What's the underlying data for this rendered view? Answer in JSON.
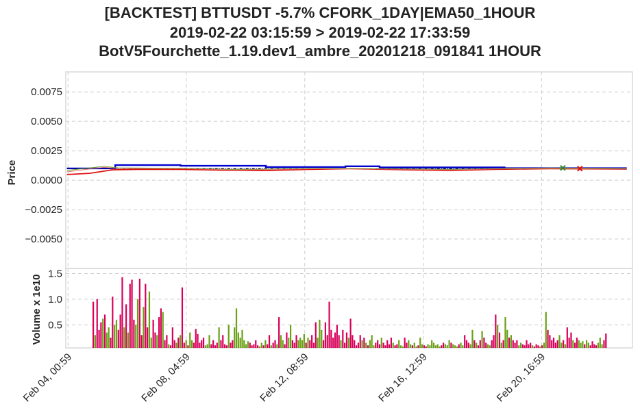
{
  "title": {
    "line1": "[BACKTEST] BTTUSDT -5.7% CFORK_1DAY|EMA50_1HOUR",
    "line2": "2019-02-22 03:15:59 > 2019-02-22 17:33:59",
    "line3": "BotV5Fourchette_1.19.dev1_ambre_20201218_091841 1HOUR"
  },
  "chart_data": [
    {
      "type": "line",
      "panel": "price",
      "ylabel": "Price",
      "ylim": [
        -0.0075,
        0.0092
      ],
      "yticks": [
        0.0075,
        0.005,
        0.0025,
        0.0,
        -0.0025,
        -0.005
      ],
      "ytick_labels": [
        "0.0075",
        "0.0050",
        "0.0025",
        "0.0000",
        "−0.0025",
        "−0.0050"
      ],
      "x_day_range": [
        3.96,
        23.9
      ],
      "xticks": [
        4.04,
        8.2,
        12.37,
        16.54,
        20.7
      ],
      "xtick_labels": [
        "Feb 04, 00:59",
        "Feb 08, 04:59",
        "Feb 12, 08:59",
        "Feb 16, 12:59",
        "Feb 20, 16:59"
      ],
      "grid": true,
      "series": [
        {
          "style": "step",
          "color": "#0000cc",
          "points": [
            [
              4.0,
              0.001
            ],
            [
              5.7,
              0.001
            ],
            [
              5.7,
              0.00128
            ],
            [
              8.0,
              0.00128
            ],
            [
              8.0,
              0.00122
            ],
            [
              11.0,
              0.00122
            ],
            [
              11.0,
              0.00112
            ],
            [
              13.8,
              0.00112
            ],
            [
              13.8,
              0.00118
            ],
            [
              15.0,
              0.00118
            ],
            [
              15.0,
              0.00108
            ],
            [
              19.4,
              0.00108
            ],
            [
              19.4,
              0.00102
            ],
            [
              23.7,
              0.00102
            ]
          ]
        },
        {
          "style": "dashed",
          "color": "#000066",
          "points": [
            [
              4.0,
              0.001
            ],
            [
              6.0,
              0.001
            ],
            [
              10.0,
              0.00099
            ],
            [
              14.0,
              0.00098
            ],
            [
              18.0,
              0.00098
            ],
            [
              21.0,
              0.00099
            ]
          ]
        },
        {
          "style": "solid",
          "color": "#e01010",
          "points": [
            [
              4.0,
              0.00048
            ],
            [
              4.8,
              0.00058
            ],
            [
              5.6,
              0.00088
            ],
            [
              6.5,
              0.00092
            ],
            [
              8.0,
              0.00092
            ],
            [
              9.5,
              0.00085
            ],
            [
              11.0,
              0.00082
            ],
            [
              12.5,
              0.00092
            ],
            [
              14.0,
              0.00098
            ],
            [
              16.0,
              0.00088
            ],
            [
              17.5,
              0.00082
            ],
            [
              19.0,
              0.00092
            ],
            [
              21.0,
              0.00098
            ],
            [
              23.7,
              0.00095
            ]
          ]
        },
        {
          "style": "thin",
          "color": "#e07070",
          "points": [
            [
              4.0,
              0.0007
            ],
            [
              5.3,
              0.0011
            ],
            [
              5.8,
              0.001
            ],
            [
              8.0,
              0.00098
            ],
            [
              10.0,
              0.00088
            ],
            [
              11.5,
              0.00092
            ],
            [
              13.0,
              0.00098
            ],
            [
              15.5,
              0.00094
            ],
            [
              17.5,
              0.00088
            ],
            [
              19.0,
              0.00095
            ],
            [
              21.0,
              0.001
            ],
            [
              23.7,
              0.00097
            ]
          ]
        },
        {
          "style": "thin",
          "color": "#70a020",
          "points": [
            [
              4.0,
              0.00082
            ],
            [
              5.3,
              0.00118
            ],
            [
              5.8,
              0.00105
            ],
            [
              8.0,
              0.00101
            ],
            [
              10.0,
              0.00092
            ],
            [
              11.5,
              0.00096
            ],
            [
              13.0,
              0.00101
            ],
            [
              15.5,
              0.00097
            ],
            [
              17.5,
              0.00092
            ],
            [
              19.0,
              0.00099
            ],
            [
              21.0,
              0.00104
            ],
            [
              23.7,
              0.001
            ]
          ]
        }
      ],
      "markers": [
        {
          "day": 21.45,
          "value": 0.00104,
          "color": "#2a8a2a",
          "symbol": "x"
        },
        {
          "day": 22.05,
          "value": 0.00098,
          "color": "#e01010",
          "symbol": "x"
        }
      ]
    },
    {
      "type": "bar",
      "panel": "volume",
      "ylabel": "Volume x 1e10",
      "ylim": [
        0.05,
        1.6
      ],
      "yticks": [
        1.5,
        1.0,
        0.5
      ],
      "ytick_labels": [
        "1.5",
        "1.0",
        "0.5"
      ],
      "up_color": "#6aa016",
      "down_color": "#d8005a",
      "series": [
        {
          "name": "",
          "values": [
            0.95,
            0.3,
            1.0,
            0.4,
            0.55,
            0.62,
            0.7,
            0.35,
            0.45,
            0.25,
            1.05,
            0.5,
            0.6,
            0.4,
            0.7,
            1.43,
            0.45,
            0.9,
            0.35,
            1.3,
            1.38,
            0.6,
            0.5,
            1.0,
            1.4,
            0.3,
            0.85,
            1.3,
            0.45,
            1.15,
            0.25,
            0.6,
            0.35,
            0.3,
            0.65,
            0.82,
            0.75,
            0.2,
            0.3,
            0.12,
            0.1,
            0.45,
            0.2,
            0.15,
            0.25,
            0.3,
            1.23,
            0.15,
            0.2,
            0.1,
            0.35,
            0.2,
            0.15,
            0.42,
            0.32,
            0.15,
            0.2,
            0.25,
            0.1,
            0.12,
            0.3,
            0.12,
            0.2,
            0.1,
            0.15,
            0.45,
            0.2,
            0.3,
            0.12,
            0.1,
            0.5,
            0.15,
            0.2,
            0.45,
            0.82,
            0.35,
            0.25,
            0.4,
            0.2,
            0.12,
            0.18,
            0.15,
            0.1,
            0.12,
            0.2,
            0.1,
            0.08,
            0.15,
            0.1,
            0.2,
            0.12,
            0.3,
            0.1,
            0.15,
            0.2,
            0.12,
            0.65,
            0.3,
            0.2,
            0.12,
            0.35,
            0.25,
            0.5,
            0.2,
            0.15,
            0.3,
            0.2,
            0.25,
            0.2,
            0.32,
            0.15,
            0.25,
            0.2,
            0.3,
            0.15,
            0.55,
            0.25,
            0.6,
            0.4,
            0.2,
            0.55,
            0.3,
            0.95,
            0.4,
            0.25,
            0.35,
            0.5,
            0.3,
            0.2,
            0.4,
            0.15,
            0.35,
            0.25,
            0.62,
            0.3,
            0.2,
            0.1,
            0.15,
            0.3,
            0.2,
            0.25,
            0.15,
            0.1,
            0.2,
            0.3,
            0.1,
            0.15,
            0.2,
            0.12,
            0.25,
            0.15,
            0.1,
            0.2,
            0.12,
            0.25,
            0.15,
            0.1,
            0.12,
            0.2,
            0.1,
            0.08,
            0.25,
            0.15,
            0.2,
            0.12,
            0.1,
            0.15,
            0.08,
            0.1,
            0.25,
            0.12,
            0.1,
            0.08,
            0.12,
            0.1,
            0.2,
            0.15,
            0.1,
            0.12,
            0.08,
            0.1,
            0.15,
            0.12,
            0.1,
            0.2,
            0.15,
            0.12,
            0.1,
            0.08,
            0.12,
            0.15,
            0.1,
            0.3,
            0.2,
            0.15,
            0.12,
            0.4,
            0.2,
            0.15,
            0.1,
            0.2,
            0.38,
            0.25,
            0.15,
            0.12,
            0.1,
            0.2,
            0.3,
            0.7,
            0.5,
            0.35,
            0.15,
            0.2,
            0.65,
            0.4,
            0.25,
            0.3,
            0.2,
            0.15,
            0.2,
            0.1,
            0.15,
            0.12,
            0.1,
            0.2,
            0.12,
            0.15,
            0.1,
            0.08,
            0.12,
            0.1,
            0.08,
            0.1,
            0.15,
            0.75,
            0.4,
            0.3,
            0.2,
            0.25,
            0.15,
            0.2,
            0.3,
            0.15,
            0.2,
            0.12,
            0.45,
            0.25,
            0.35,
            0.2,
            0.15,
            0.25,
            0.2,
            0.15,
            0.18,
            0.12,
            0.2,
            0.15,
            0.1,
            0.18,
            0.12,
            0.1,
            0.15,
            0.25,
            0.12,
            0.2,
            0.33
          ]
        }
      ]
    }
  ]
}
